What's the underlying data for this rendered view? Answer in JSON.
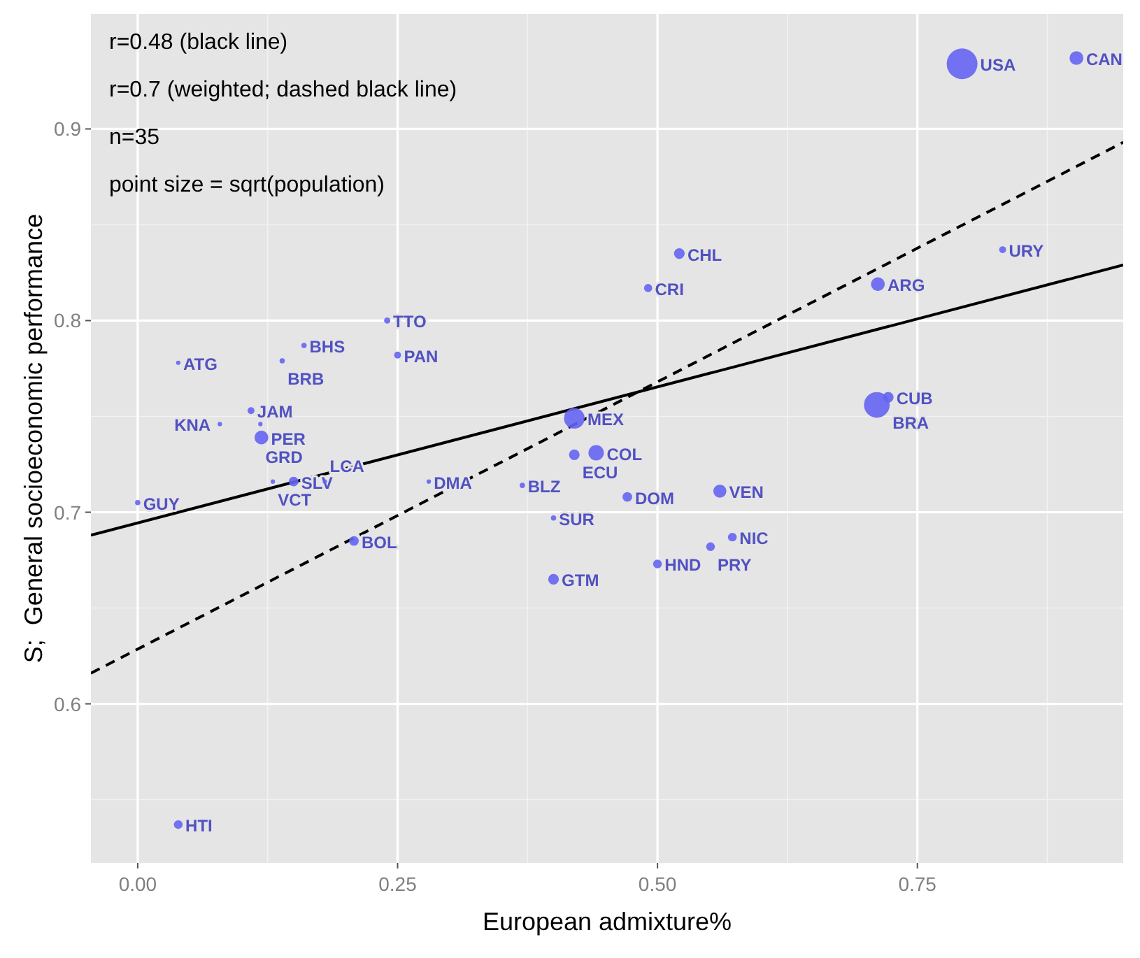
{
  "chart_data": {
    "type": "bubble",
    "xlabel": "European admixture%",
    "ylabel": "S;  General socioeconomic performance",
    "xlim": [
      -0.045,
      0.948
    ],
    "ylim": [
      0.517,
      0.96
    ],
    "xticks": [
      {
        "value": 0,
        "label": "0.00"
      },
      {
        "value": 0.25,
        "label": "0.25"
      },
      {
        "value": 0.5,
        "label": "0.50"
      },
      {
        "value": 0.75,
        "label": "0.75"
      }
    ],
    "yticks": [
      0.6,
      0.7,
      0.8,
      0.9
    ],
    "grid": true,
    "series": [
      {
        "color": "#6464f2",
        "x": [
          0.793,
          0.903,
          0.832,
          0.712,
          0.722,
          0.711,
          0.521,
          0.491,
          0.42,
          0.42,
          0.441,
          0.37,
          0.4,
          0.471,
          0.56,
          0.572,
          0.551,
          0.5,
          0.4,
          0.24,
          0.25,
          0.16,
          0.139,
          0.039,
          0.109,
          0.079,
          0.118,
          0.119,
          0.13,
          0.15,
          0.18,
          0.28,
          0.0,
          0.208,
          0.039
        ],
        "values": [
          0.934,
          0.937,
          0.837,
          0.819,
          0.76,
          0.756,
          0.835,
          0.817,
          0.749,
          0.73,
          0.731,
          0.714,
          0.697,
          0.708,
          0.711,
          0.687,
          0.682,
          0.673,
          0.665,
          0.8,
          0.782,
          0.787,
          0.779,
          0.778,
          0.753,
          0.746,
          0.746,
          0.739,
          0.716,
          0.716,
          0.716,
          0.716,
          0.705,
          0.685,
          0.537
        ],
        "sizes": [
          1,
          0.2,
          0.05,
          0.2,
          0.12,
          0.7,
          0.12,
          0.07,
          0.45,
          0.12,
          0.25,
          0.03,
          0.03,
          0.1,
          0.18,
          0.08,
          0.08,
          0.08,
          0.12,
          0.04,
          0.05,
          0.03,
          0.03,
          0.02,
          0.05,
          0.02,
          0.02,
          0.2,
          0.02,
          0.1,
          0.02,
          0.02,
          0.03,
          0.1,
          0.08
        ]
      },
      {
        "type": "line",
        "color": "#000000",
        "line_style": "solid",
        "x": [
          -0.045,
          0.948
        ],
        "values": [
          0.688,
          0.829
        ]
      },
      {
        "type": "line",
        "color": "#000000",
        "line_style": "dashed",
        "x": [
          -0.045,
          0.948
        ],
        "values": [
          0.616,
          0.893
        ]
      }
    ],
    "annotations": [
      "r=0.48 (black line)",
      "r=0.7 (weighted; dashed black line)",
      "n=35",
      "point size = sqrt(population)",
      {
        "text": "USA",
        "x": 0.793,
        "y": 0.934
      },
      {
        "text": "CAN",
        "x": 0.903,
        "y": 0.937
      },
      {
        "text": "URY",
        "x": 0.832,
        "y": 0.837
      },
      {
        "text": "ARG",
        "x": 0.712,
        "y": 0.819
      },
      {
        "text": "CUB",
        "x": 0.722,
        "y": 0.76
      },
      {
        "text": "BRA",
        "x": 0.711,
        "y": 0.756
      },
      {
        "text": "CHL",
        "x": 0.521,
        "y": 0.835
      },
      {
        "text": "CRI",
        "x": 0.491,
        "y": 0.817
      },
      {
        "text": "MEX",
        "x": 0.42,
        "y": 0.749
      },
      {
        "text": "ECU",
        "x": 0.42,
        "y": 0.73
      },
      {
        "text": "COL",
        "x": 0.441,
        "y": 0.731
      },
      {
        "text": "BLZ",
        "x": 0.37,
        "y": 0.714
      },
      {
        "text": "SUR",
        "x": 0.4,
        "y": 0.697
      },
      {
        "text": "DOM",
        "x": 0.471,
        "y": 0.708
      },
      {
        "text": "VEN",
        "x": 0.56,
        "y": 0.711
      },
      {
        "text": "NIC",
        "x": 0.572,
        "y": 0.687
      },
      {
        "text": "PRY",
        "x": 0.551,
        "y": 0.682
      },
      {
        "text": "HND",
        "x": 0.5,
        "y": 0.673
      },
      {
        "text": "GTM",
        "x": 0.4,
        "y": 0.665
      },
      {
        "text": "TTO",
        "x": 0.24,
        "y": 0.8
      },
      {
        "text": "PAN",
        "x": 0.25,
        "y": 0.782
      },
      {
        "text": "BHS",
        "x": 0.16,
        "y": 0.787
      },
      {
        "text": "BRB",
        "x": 0.139,
        "y": 0.779
      },
      {
        "text": "ATG",
        "x": 0.039,
        "y": 0.778
      },
      {
        "text": "JAM",
        "x": 0.109,
        "y": 0.753
      },
      {
        "text": "KNA",
        "x": 0.079,
        "y": 0.746
      },
      {
        "text": "GRD",
        "x": 0.118,
        "y": 0.746
      },
      {
        "text": "PER",
        "x": 0.119,
        "y": 0.739
      },
      {
        "text": "VCT",
        "x": 0.13,
        "y": 0.716
      },
      {
        "text": "SLV",
        "x": 0.15,
        "y": 0.716
      },
      {
        "text": "LCA",
        "x": 0.18,
        "y": 0.716
      },
      {
        "text": "DMA",
        "x": 0.28,
        "y": 0.716
      },
      {
        "text": "GUY",
        "x": 0.0,
        "y": 0.705
      },
      {
        "text": "BOL",
        "x": 0.208,
        "y": 0.685
      },
      {
        "text": "HTI",
        "x": 0.039,
        "y": 0.537
      }
    ]
  }
}
